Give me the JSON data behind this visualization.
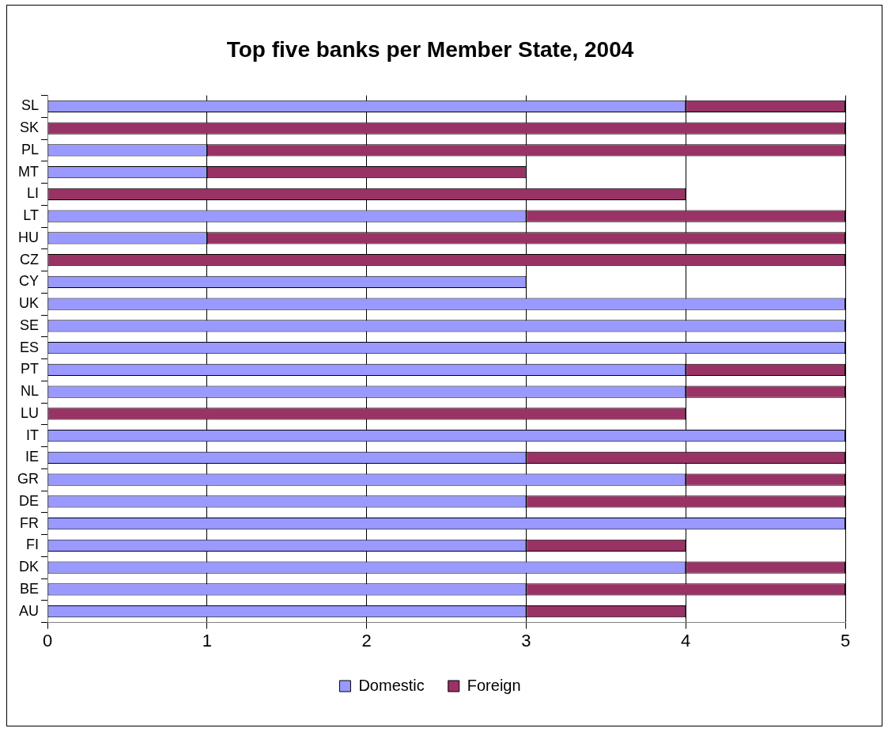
{
  "chart_data": {
    "type": "bar",
    "orientation": "horizontal",
    "stacked": true,
    "title": "Top five banks per Member State, 2004",
    "categories": [
      "SL",
      "SK",
      "PL",
      "MT",
      "LI",
      "LT",
      "HU",
      "CZ",
      "CY",
      "UK",
      "SE",
      "ES",
      "PT",
      "NL",
      "LU",
      "IT",
      "IE",
      "GR",
      "DE",
      "FR",
      "FI",
      "DK",
      "BE",
      "AU"
    ],
    "series": [
      {
        "name": "Domestic",
        "color": "#9999ff",
        "values": [
          4,
          0,
          1,
          1,
          0,
          3,
          1,
          0,
          3,
          5,
          5,
          5,
          4,
          4,
          0,
          5,
          3,
          4,
          3,
          5,
          3,
          4,
          3,
          3
        ]
      },
      {
        "name": "Foreign",
        "color": "#993366",
        "values": [
          1,
          5,
          4,
          2,
          4,
          2,
          4,
          5,
          0,
          0,
          0,
          0,
          1,
          1,
          4,
          0,
          2,
          1,
          2,
          0,
          1,
          1,
          2,
          1
        ]
      }
    ],
    "xlim": [
      0,
      5
    ],
    "xticks": [
      0,
      1,
      2,
      3,
      4,
      5
    ],
    "grid": "x",
    "legend": "bottom"
  }
}
